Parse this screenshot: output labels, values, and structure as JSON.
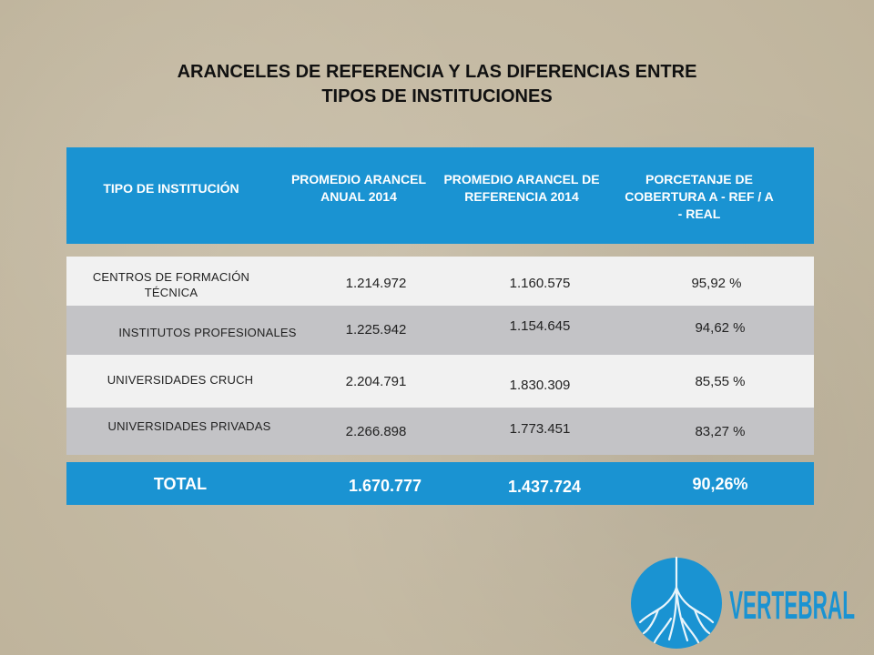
{
  "title": {
    "line1": "ARANCELES DE REFERENCIA Y LAS DIFERENCIAS ENTRE",
    "line2": "TIPOS DE INSTITUCIONES"
  },
  "table": {
    "headers": [
      "TIPO DE INSTITUCIÓN",
      "PROMEDIO ARANCEL ANUAL 2014",
      "PROMEDIO ARANCEL DE REFERENCIA 2014",
      "PORCETANJE DE COBERTURA A - REF / A - REAL"
    ],
    "rows": [
      {
        "name": "CENTROS DE FORMACIÓN TÉCNICA",
        "anual": "1.214.972",
        "referencia": "1.160.575",
        "cobertura": "95,92 %"
      },
      {
        "name": "INSTITUTOS PROFESIONALES",
        "anual": "1.225.942",
        "referencia": "1.154.645",
        "cobertura": "94,62 %"
      },
      {
        "name": "UNIVERSIDADES CRUCH",
        "anual": "2.204.791",
        "referencia": "1.830.309",
        "cobertura": "85,55 %"
      },
      {
        "name": "UNIVERSIDADES PRIVADAS",
        "anual": "2.266.898",
        "referencia": "1.773.451",
        "cobertura": "83,27 %"
      }
    ],
    "total": {
      "label": "TOTAL",
      "anual": "1.670.777",
      "referencia": "1.437.724",
      "cobertura": "90,26%"
    }
  },
  "logo": {
    "text": "VERTEBRAL",
    "color": "#1a93d2"
  },
  "colors": {
    "header": "#1a93d2",
    "row_light": "#f1f1f1",
    "row_dark": "#c3c3c6"
  }
}
